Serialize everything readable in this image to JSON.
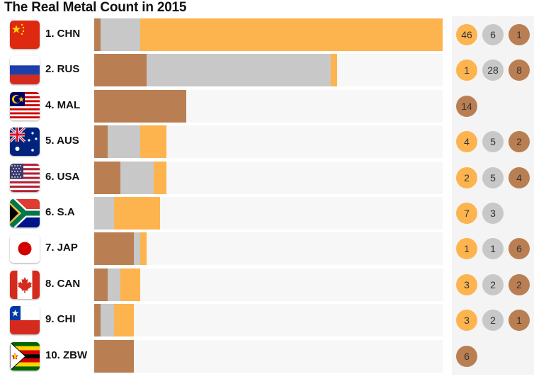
{
  "title": "The Real Metal Count in 2015",
  "colors": {
    "gold": "#fdb44f",
    "silver": "#c8c8c8",
    "bronze": "#b97f52",
    "track": "#f7f7f7"
  },
  "chart_data": {
    "type": "bar",
    "stacked": true,
    "orientation": "horizontal",
    "categories": [
      "1. CHN",
      "2. RUS",
      "4. MAL",
      "5. AUS",
      "6. USA",
      "6. S.A",
      "7. JAP",
      "8. CAN",
      "9. CHI",
      "10. ZBW"
    ],
    "series": [
      {
        "key": "bronze",
        "color": "#b97f52",
        "values": [
          1,
          8,
          14,
          2,
          4,
          0,
          6,
          2,
          1,
          6
        ]
      },
      {
        "key": "silver",
        "color": "#c8c8c8",
        "values": [
          6,
          28,
          0,
          5,
          5,
          3,
          1,
          2,
          2,
          0
        ]
      },
      {
        "key": "gold",
        "color": "#fdb44f",
        "values": [
          46,
          1,
          0,
          4,
          2,
          7,
          1,
          3,
          3,
          0
        ]
      }
    ],
    "xlim": [
      0,
      53
    ]
  },
  "rows": [
    {
      "label": "1. CHN",
      "flag": "china-flag-icon",
      "badges": [
        "46",
        "6",
        "1"
      ],
      "badge_types": [
        "gold",
        "silver",
        "bronze"
      ]
    },
    {
      "label": "2. RUS",
      "flag": "russia-flag-icon",
      "badges": [
        "1",
        "28",
        "8"
      ],
      "badge_types": [
        "gold",
        "silver",
        "bronze"
      ]
    },
    {
      "label": "4. MAL",
      "flag": "malaysia-flag-icon",
      "badges": [
        "14"
      ],
      "badge_types": [
        "bronze"
      ]
    },
    {
      "label": "5. AUS",
      "flag": "australia-flag-icon",
      "badges": [
        "4",
        "5",
        "2"
      ],
      "badge_types": [
        "gold",
        "silver",
        "bronze"
      ]
    },
    {
      "label": "6. USA",
      "flag": "usa-flag-icon",
      "badges": [
        "2",
        "5",
        "4"
      ],
      "badge_types": [
        "gold",
        "silver",
        "bronze"
      ]
    },
    {
      "label": "6. S.A",
      "flag": "south-africa-flag-icon",
      "badges": [
        "7",
        "3"
      ],
      "badge_types": [
        "gold",
        "silver"
      ]
    },
    {
      "label": "7. JAP",
      "flag": "japan-flag-icon",
      "badges": [
        "1",
        "1",
        "6"
      ],
      "badge_types": [
        "gold",
        "silver",
        "bronze"
      ]
    },
    {
      "label": "8. CAN",
      "flag": "canada-flag-icon",
      "badges": [
        "3",
        "2",
        "2"
      ],
      "badge_types": [
        "gold",
        "silver",
        "bronze"
      ]
    },
    {
      "label": "9. CHI",
      "flag": "chile-flag-icon",
      "badges": [
        "3",
        "2",
        "1"
      ],
      "badge_types": [
        "gold",
        "silver",
        "bronze"
      ]
    },
    {
      "label": "10. ZBW",
      "flag": "zimbabwe-flag-icon",
      "badges": [
        "6"
      ],
      "badge_types": [
        "bronze"
      ]
    }
  ]
}
